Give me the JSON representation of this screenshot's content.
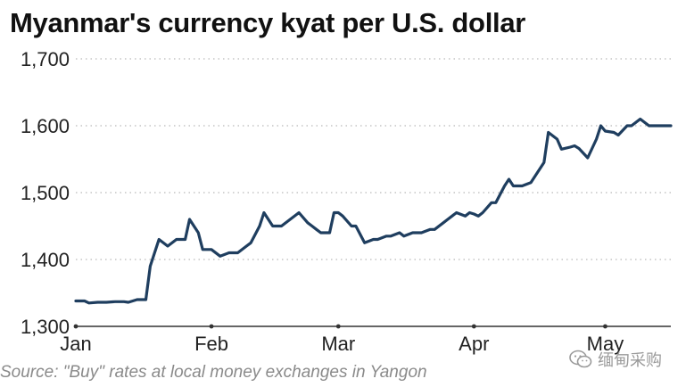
{
  "title": "Myanmar's currency kyat per U.S. dollar",
  "source": "Source: \"Buy\" rates at local money exchanges in Yangon",
  "watermark": {
    "text": "缅甸采购",
    "icon": "wechat-icon"
  },
  "colors": {
    "line": "#1f3e5f",
    "grid": "#b9b9b9",
    "axis": "#333333",
    "text": "#222222",
    "source": "#8a8a8a"
  },
  "chart_data": {
    "type": "line",
    "title": "Myanmar's currency kyat per U.S. dollar",
    "xlabel": "",
    "ylabel": "",
    "ylim": [
      1300,
      1700
    ],
    "yticks": [
      1300,
      1400,
      1500,
      1600,
      1700
    ],
    "ytick_labels": [
      "1,300",
      "1,400",
      "1,500",
      "1,600",
      "1,700"
    ],
    "grid": "horizontal dotted",
    "x_unit": "day of year (2020)",
    "xlim": [
      1,
      137
    ],
    "month_ticks": [
      {
        "label": "Jan",
        "x": 1
      },
      {
        "label": "Feb",
        "x": 32
      },
      {
        "label": "Mar",
        "x": 61
      },
      {
        "label": "Apr",
        "x": 92
      },
      {
        "label": "May",
        "x": 122
      }
    ],
    "series": [
      {
        "x": [
          1,
          3,
          4,
          6,
          8,
          10,
          12,
          13,
          15,
          17,
          18,
          20,
          22,
          24,
          26,
          27,
          29,
          30,
          32,
          34,
          36,
          38,
          40,
          41,
          43,
          44,
          46,
          48,
          50,
          52,
          54,
          55,
          56,
          57,
          59,
          60,
          61,
          62,
          64,
          65,
          67,
          69,
          70,
          72,
          73,
          75,
          76,
          78,
          80,
          82,
          83,
          85,
          86,
          88,
          90,
          91,
          92,
          93,
          94,
          96,
          97,
          99,
          100,
          101,
          103,
          105,
          106,
          108,
          109,
          111,
          112,
          114,
          115,
          116,
          118,
          120,
          121,
          122,
          124,
          125,
          127,
          128,
          130,
          132,
          133,
          135,
          137
        ],
        "y": [
          1338,
          1338,
          1335,
          1336,
          1336,
          1337,
          1337,
          1336,
          1340,
          1340,
          1390,
          1430,
          1420,
          1430,
          1430,
          1460,
          1440,
          1415,
          1415,
          1405,
          1410,
          1410,
          1420,
          1425,
          1450,
          1470,
          1450,
          1450,
          1460,
          1470,
          1455,
          1450,
          1445,
          1440,
          1440,
          1470,
          1470,
          1465,
          1450,
          1450,
          1425,
          1430,
          1430,
          1435,
          1435,
          1440,
          1435,
          1440,
          1440,
          1445,
          1445,
          1455,
          1460,
          1470,
          1465,
          1470,
          1468,
          1465,
          1470,
          1485,
          1485,
          1510,
          1520,
          1510,
          1510,
          1515,
          1525,
          1545,
          1590,
          1580,
          1565,
          1568,
          1570,
          1566,
          1552,
          1580,
          1600,
          1592,
          1590,
          1586,
          1600,
          1600,
          1610,
          1600,
          1600,
          1600,
          1600
        ]
      }
    ]
  }
}
